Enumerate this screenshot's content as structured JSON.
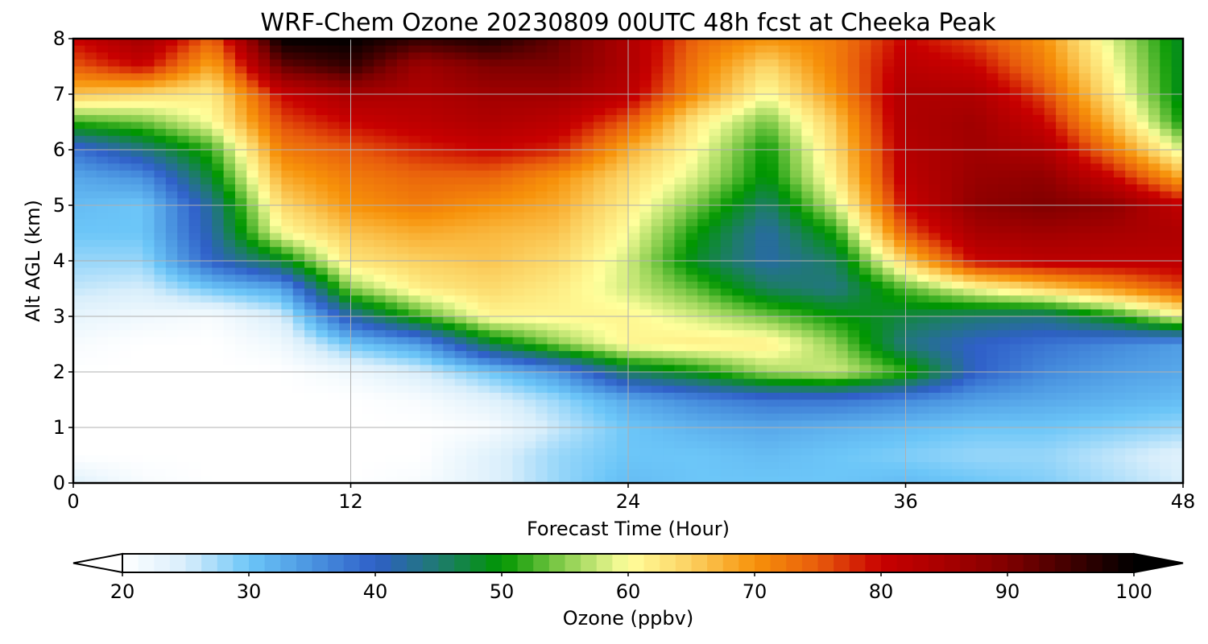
{
  "chart_data": {
    "type": "heatmap",
    "title": "WRF-Chem Ozone  20230809 00UTC 48h fcst at Cheeka Peak",
    "xlabel": "Forecast Time (Hour)",
    "ylabel": "Alt AGL (km)",
    "xlim": [
      0,
      48
    ],
    "ylim": [
      0,
      8
    ],
    "xticks": [
      0,
      12,
      24,
      36,
      48
    ],
    "yticks": [
      0,
      1,
      2,
      3,
      4,
      5,
      6,
      7,
      8
    ],
    "grid": true,
    "colorbar": {
      "label": "Ozone  (ppbv)",
      "min": 20,
      "max": 100,
      "ticks": [
        20,
        30,
        40,
        50,
        60,
        70,
        80,
        90,
        100
      ],
      "extend": "both",
      "stops": [
        {
          "v": 20,
          "color": "#ffffff"
        },
        {
          "v": 25,
          "color": "#d8eefb"
        },
        {
          "v": 30,
          "color": "#6cc6f8"
        },
        {
          "v": 35,
          "color": "#4a94e0"
        },
        {
          "v": 40,
          "color": "#2f5fc8"
        },
        {
          "v": 45,
          "color": "#1f7a70"
        },
        {
          "v": 50,
          "color": "#009600"
        },
        {
          "v": 55,
          "color": "#8ccf50"
        },
        {
          "v": 60,
          "color": "#ffff9c"
        },
        {
          "v": 65,
          "color": "#fbd060"
        },
        {
          "v": 70,
          "color": "#f7920a"
        },
        {
          "v": 75,
          "color": "#e85c0c"
        },
        {
          "v": 80,
          "color": "#c80000"
        },
        {
          "v": 85,
          "color": "#a80000"
        },
        {
          "v": 90,
          "color": "#800000"
        },
        {
          "v": 95,
          "color": "#400000"
        },
        {
          "v": 100,
          "color": "#000000"
        }
      ]
    },
    "x": [
      0,
      3,
      6,
      9,
      12,
      15,
      18,
      21,
      24,
      27,
      30,
      33,
      36,
      39,
      42,
      45,
      48
    ],
    "y": [
      0,
      0.5,
      1,
      1.5,
      2,
      2.5,
      3,
      3.5,
      4,
      4.5,
      5,
      5.5,
      6,
      6.5,
      7,
      7.5,
      8
    ],
    "z": [
      [
        24,
        21,
        20,
        20,
        20,
        21,
        24,
        28,
        31,
        30,
        30,
        30,
        31,
        30,
        29,
        27,
        25
      ],
      [
        20,
        20,
        20,
        20,
        20,
        20,
        24,
        28,
        30,
        30,
        31,
        30,
        29,
        28,
        28,
        26,
        24
      ],
      [
        20,
        20,
        20,
        20,
        20,
        20,
        21,
        26,
        30,
        32,
        33,
        32,
        31,
        30,
        30,
        29,
        28
      ],
      [
        20,
        20,
        20,
        20,
        20,
        21,
        24,
        28,
        33,
        36,
        38,
        38,
        36,
        34,
        33,
        32,
        31
      ],
      [
        20,
        20,
        20,
        20,
        22,
        25,
        30,
        35,
        46,
        50,
        56,
        58,
        52,
        40,
        36,
        34,
        33
      ],
      [
        21,
        20,
        20,
        22,
        30,
        34,
        47,
        55,
        61,
        62,
        62,
        55,
        44,
        40,
        38,
        36,
        34
      ],
      [
        23,
        22,
        21,
        25,
        42,
        52,
        61,
        61,
        61,
        58,
        54,
        50,
        47,
        45,
        44,
        50,
        60
      ],
      [
        26,
        25,
        30,
        33,
        55,
        62,
        64,
        62,
        58,
        53,
        46,
        44,
        53,
        60,
        65,
        70,
        76
      ],
      [
        28,
        28,
        40,
        48,
        63,
        65,
        66,
        64,
        58,
        48,
        42,
        46,
        65,
        80,
        82,
        82,
        82
      ],
      [
        30,
        30,
        42,
        60,
        66,
        68,
        67,
        66,
        60,
        50,
        42,
        51,
        75,
        85,
        86,
        85,
        84
      ],
      [
        31,
        30,
        43,
        64,
        70,
        72,
        70,
        68,
        62,
        54,
        45,
        58,
        80,
        88,
        90,
        88,
        81
      ],
      [
        33,
        35,
        48,
        68,
        72,
        74,
        74,
        70,
        64,
        58,
        49,
        62,
        82,
        87,
        88,
        80,
        68
      ],
      [
        38,
        44,
        52,
        72,
        75,
        78,
        80,
        78,
        68,
        60,
        50,
        64,
        83,
        86,
        84,
        72,
        58
      ],
      [
        52,
        54,
        60,
        76,
        80,
        82,
        84,
        82,
        75,
        62,
        54,
        66,
        84,
        86,
        80,
        66,
        50
      ],
      [
        66,
        64,
        62,
        80,
        85,
        84,
        86,
        86,
        82,
        70,
        60,
        70,
        84,
        84,
        76,
        62,
        48
      ],
      [
        75,
        80,
        68,
        92,
        96,
        86,
        90,
        90,
        84,
        72,
        64,
        72,
        82,
        80,
        72,
        60,
        48
      ],
      [
        80,
        86,
        74,
        100,
        100,
        96,
        98,
        92,
        84,
        74,
        70,
        72,
        80,
        76,
        70,
        58,
        48
      ]
    ]
  }
}
